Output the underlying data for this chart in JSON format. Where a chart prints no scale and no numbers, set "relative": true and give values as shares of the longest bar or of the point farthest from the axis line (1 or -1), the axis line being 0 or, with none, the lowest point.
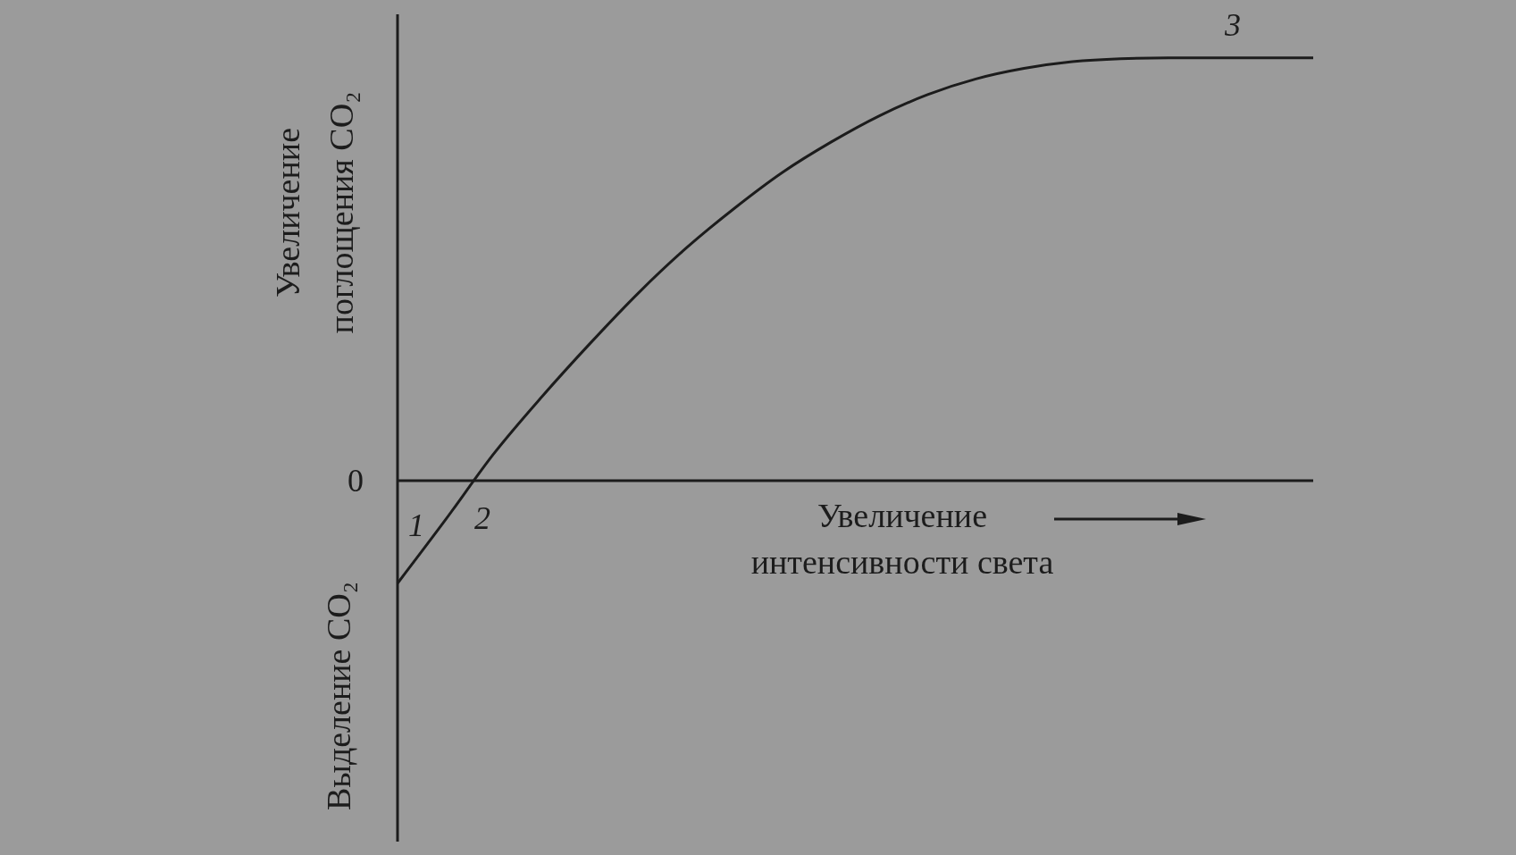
{
  "chart_data": {
    "type": "line",
    "relative": true,
    "categories": [
      null,
      null,
      null,
      null,
      null,
      null,
      null,
      null,
      null,
      null,
      null,
      null,
      null,
      null,
      null,
      null,
      null,
      null,
      null,
      null
    ],
    "values": [
      -0.243,
      -0.092,
      0.064,
      0.199,
      0.325,
      0.444,
      0.551,
      0.645,
      0.73,
      0.801,
      0.863,
      0.913,
      0.95,
      0.975,
      0.991,
      0.998,
      1,
      1,
      1,
      1
    ],
    "color": "#1c1c1c",
    "ylabel": "Увеличение поглощения CO₂",
    "xlabel": "Увеличение интенсивности света",
    "annotations": [
      "Выделение CO₂",
      "0",
      "1",
      "2",
      "3"
    ]
  }
}
